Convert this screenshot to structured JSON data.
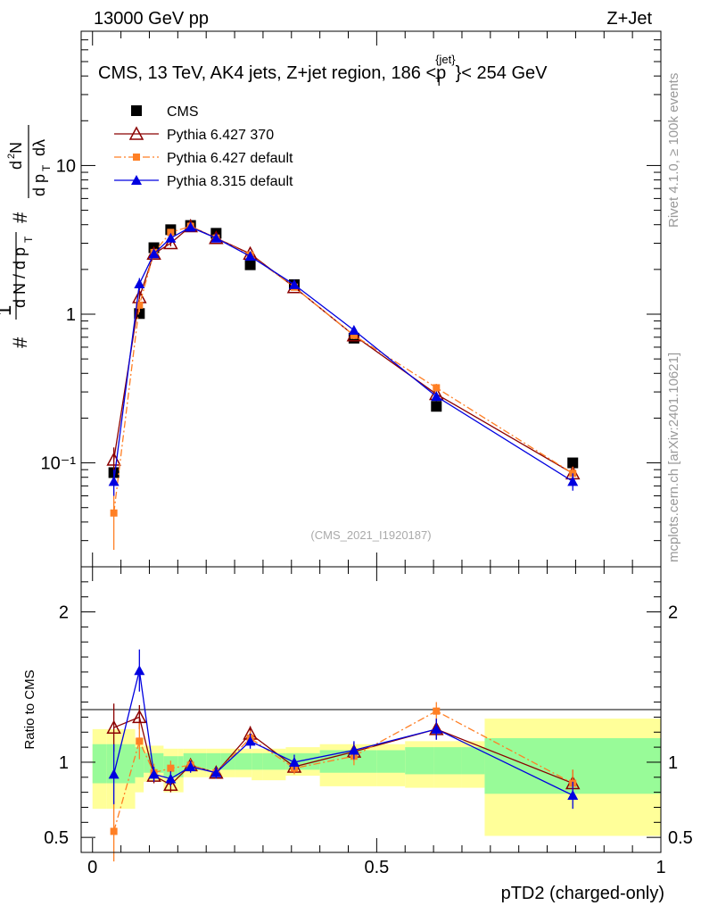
{
  "header": {
    "energy_label": "13000 GeV pp",
    "process_label": "Z+Jet",
    "plot_title": "CMS, 13 TeV, AK4 jets, Z+jet region, 186 <p",
    "plot_title_sup": "{jet}",
    "plot_title_sub": "T",
    "plot_title_end": "}< 254 GeV",
    "watermark": "(CMS_2021_I1920187)",
    "side_label_top": "Rivet 4.1.0, ≥ 100k events",
    "side_label_bottom": "mcplots.cern.ch [arXiv:2401.10621]"
  },
  "colors": {
    "cms": "#000000",
    "py6_370": "#8b0000",
    "py6_default": "#ff7f24",
    "py8_default": "#0000e0",
    "band_inner": "#98fb98",
    "band_outer": "#ffff99"
  },
  "chart_data": [
    {
      "type": "scatter",
      "panel": "main",
      "yscale": "log",
      "ylim": [
        0.02,
        80
      ],
      "xlim": [
        -0.02,
        1.0
      ],
      "ylabel": "# 1/(d N / d p_T) # d^2N/(d p_T dλ)",
      "ytick_labels": [
        "10⁻¹",
        "1",
        "10"
      ],
      "ytick_values": [
        0.1,
        1,
        10
      ],
      "legend": [
        "CMS",
        "Pythia 6.427 370",
        "Pythia 6.427 default",
        "Pythia 8.315 default"
      ],
      "legend_position": "top-left",
      "x": [
        0.0375,
        0.0825,
        0.108,
        0.1375,
        0.1725,
        0.2175,
        0.2775,
        0.355,
        0.46,
        0.605,
        0.845
      ],
      "xerr": [
        0.0125,
        0.0075,
        0.0075,
        0.0125,
        0.015,
        0.02,
        0.025,
        0.04,
        0.06,
        0.08,
        0.155
      ],
      "series": [
        {
          "name": "CMS",
          "color_key": "cms",
          "marker": "square-filled",
          "values": [
            0.086,
            1.01,
            2.8,
            3.7,
            3.95,
            3.5,
            2.15,
            1.58,
            0.69,
            0.24,
            0.1
          ],
          "err": [
            0.004,
            0.04,
            0.06,
            0.08,
            0.08,
            0.07,
            0.05,
            0.04,
            0.02,
            0.01,
            0.005
          ]
        },
        {
          "name": "Pythia 6.427 370",
          "color_key": "py6_370",
          "marker": "triangle-open",
          "values": [
            0.105,
            1.3,
            2.55,
            3.0,
            3.9,
            3.25,
            2.55,
            1.52,
            0.72,
            0.29,
            0.085
          ],
          "err": [
            0.022,
            0.1,
            0.12,
            0.14,
            0.12,
            0.1,
            0.1,
            0.06,
            0.04,
            0.02,
            0.009
          ]
        },
        {
          "name": "Pythia 6.427 default",
          "color_key": "py6_default",
          "marker": "square-small",
          "values": [
            0.046,
            1.15,
            2.6,
            3.55,
            3.9,
            3.25,
            2.5,
            1.52,
            0.72,
            0.32,
            0.085
          ],
          "err": [
            0.02,
            0.12,
            0.13,
            0.15,
            0.12,
            0.1,
            0.1,
            0.06,
            0.04,
            0.02,
            0.009
          ]
        },
        {
          "name": "Pythia 8.315 default",
          "color_key": "py8_default",
          "marker": "triangle-filled",
          "values": [
            0.075,
            1.6,
            2.55,
            3.25,
            3.85,
            3.25,
            2.45,
            1.58,
            0.78,
            0.28,
            0.075
          ],
          "err": [
            0.015,
            0.15,
            0.12,
            0.13,
            0.12,
            0.1,
            0.1,
            0.06,
            0.04,
            0.02,
            0.01
          ]
        }
      ]
    },
    {
      "type": "scatter",
      "panel": "ratio",
      "yscale": "linear",
      "ylim": [
        0.4,
        2.3
      ],
      "xlim": [
        -0.02,
        1.0
      ],
      "ylabel": "Ratio to CMS",
      "xlabel": "pTD2 (charged-only)",
      "xtick_labels": [
        "0",
        "0.5",
        "1"
      ],
      "xtick_values": [
        0,
        0.5,
        1
      ],
      "ytick_labels": [
        "0.5",
        "1",
        "2"
      ],
      "ytick_values": [
        0.5,
        1,
        2
      ],
      "band_edges": [
        0,
        0.025,
        0.075,
        0.09,
        0.1,
        0.125,
        0.15,
        0.16,
        0.2,
        0.225,
        0.25,
        0.28,
        0.3,
        0.34,
        0.4,
        0.45,
        0.5,
        0.55,
        0.6,
        0.65,
        0.69,
        1.0
      ],
      "band_inner": [
        [
          0.86,
          1.12
        ],
        [
          0.86,
          1.12
        ],
        [
          0.9,
          1.1
        ],
        [
          0.93,
          1.06
        ],
        [
          0.93,
          1.06
        ],
        [
          0.9,
          1.04
        ],
        [
          0.9,
          1.04
        ],
        [
          0.95,
          1.06
        ],
        [
          0.95,
          1.06
        ],
        [
          0.95,
          1.06
        ],
        [
          0.95,
          1.06
        ],
        [
          0.95,
          1.06
        ],
        [
          0.95,
          1.06
        ],
        [
          0.95,
          1.06
        ],
        [
          0.93,
          1.08
        ],
        [
          0.93,
          1.08
        ],
        [
          0.93,
          1.08
        ],
        [
          0.92,
          1.1
        ],
        [
          0.92,
          1.1
        ],
        [
          0.92,
          1.1
        ],
        [
          0.79,
          1.16
        ]
      ],
      "band_outer": [
        [
          0.69,
          1.22
        ],
        [
          0.69,
          1.22
        ],
        [
          0.8,
          1.16
        ],
        [
          0.87,
          1.11
        ],
        [
          0.87,
          1.11
        ],
        [
          0.8,
          1.09
        ],
        [
          0.8,
          1.09
        ],
        [
          0.9,
          1.09
        ],
        [
          0.9,
          1.09
        ],
        [
          0.9,
          1.09
        ],
        [
          0.9,
          1.09
        ],
        [
          0.88,
          1.09
        ],
        [
          0.88,
          1.09
        ],
        [
          0.91,
          1.1
        ],
        [
          0.84,
          1.12
        ],
        [
          0.84,
          1.12
        ],
        [
          0.84,
          1.12
        ],
        [
          0.83,
          1.14
        ],
        [
          0.83,
          1.14
        ],
        [
          0.83,
          1.14
        ],
        [
          0.51,
          1.29
        ]
      ],
      "series": [
        {
          "name": "Pythia 6.427 370",
          "color_key": "py6_370",
          "marker": "triangle-open",
          "values": [
            1.23,
            1.3,
            0.91,
            0.85,
            0.98,
            0.93,
            1.19,
            0.97,
            1.07,
            1.22,
            0.86
          ],
          "err": [
            0.16,
            0.08,
            0.05,
            0.05,
            0.04,
            0.04,
            0.05,
            0.04,
            0.06,
            0.07,
            0.09
          ]
        },
        {
          "name": "Pythia 6.427 default",
          "color_key": "py6_default",
          "marker": "square-small",
          "values": [
            0.54,
            1.14,
            0.93,
            0.96,
            0.98,
            0.93,
            1.16,
            0.96,
            1.04,
            1.34,
            0.86
          ],
          "err": [
            0.2,
            0.12,
            0.06,
            0.05,
            0.04,
            0.04,
            0.05,
            0.04,
            0.06,
            0.06,
            0.09
          ]
        },
        {
          "name": "Pythia 8.315 default",
          "color_key": "py8_default",
          "marker": "triangle-filled",
          "values": [
            0.92,
            1.61,
            0.92,
            0.89,
            0.97,
            0.93,
            1.14,
            1.0,
            1.08,
            1.22,
            0.78
          ],
          "err": [
            0.2,
            0.14,
            0.05,
            0.05,
            0.04,
            0.04,
            0.05,
            0.05,
            0.06,
            0.07,
            0.09
          ]
        }
      ]
    }
  ]
}
